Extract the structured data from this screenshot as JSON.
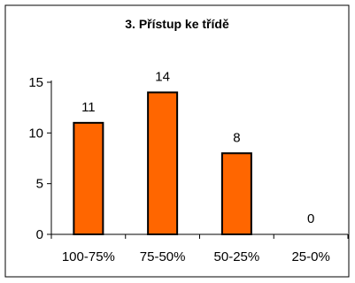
{
  "chart_data": {
    "type": "bar",
    "title": "3. Přístup ke třídě",
    "categories": [
      "100-75%",
      "75-50%",
      "50-25%",
      "25-0%"
    ],
    "values": [
      11,
      14,
      8,
      0
    ],
    "data_labels": [
      "11",
      "14",
      "8",
      "0"
    ],
    "ylim": [
      0,
      15
    ],
    "yticks": [
      0,
      5,
      10,
      15
    ],
    "xlabel": "",
    "ylabel": "",
    "grid": false,
    "legend": "none",
    "bar_color": "#ff6600",
    "bar_outline": "#000000"
  }
}
